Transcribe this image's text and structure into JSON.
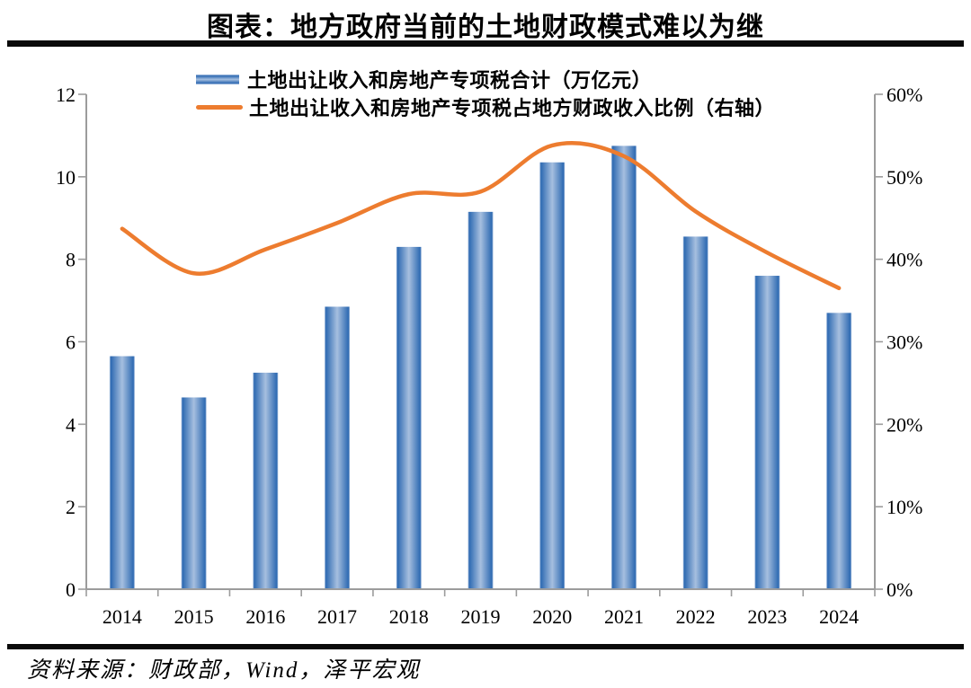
{
  "page": {
    "title": "图表：地方政府当前的土地财政模式难以为继",
    "source": "资料来源：财政部，Wind，泽平宏观"
  },
  "chart_data": {
    "type": "combo",
    "categories": [
      "2014",
      "2015",
      "2016",
      "2017",
      "2018",
      "2019",
      "2020",
      "2021",
      "2022",
      "2023",
      "2024"
    ],
    "series": [
      {
        "name": "土地出让收入和房地产专项税合计（万亿元）",
        "type": "bar",
        "axis": "left",
        "unit": "万亿元",
        "color": "#2E6AB2",
        "color_light": "#A6BFDF",
        "values": [
          5.65,
          4.65,
          5.25,
          6.85,
          8.3,
          9.15,
          10.35,
          10.75,
          8.55,
          7.6,
          6.7
        ]
      },
      {
        "name": "土地出让收入和房地产专项税占地方财政收入比例（右轴）",
        "type": "line",
        "axis": "right",
        "unit": "%",
        "color": "#ED7C2F",
        "smooth": true,
        "values": [
          43.7,
          38.3,
          41.2,
          44.4,
          47.9,
          48.2,
          53.8,
          52.5,
          45.8,
          40.8,
          36.5
        ]
      }
    ],
    "left_axis": {
      "min": 0,
      "max": 12,
      "step": 2,
      "tick_labels": [
        "0",
        "2",
        "4",
        "6",
        "8",
        "10",
        "12"
      ]
    },
    "right_axis": {
      "min": 0,
      "max": 60,
      "step": 10,
      "tick_labels": [
        "0%",
        "10%",
        "20%",
        "30%",
        "40%",
        "50%",
        "60%"
      ]
    },
    "legend_position": "top",
    "grid": false,
    "axis_color": "#9c9c9c"
  }
}
